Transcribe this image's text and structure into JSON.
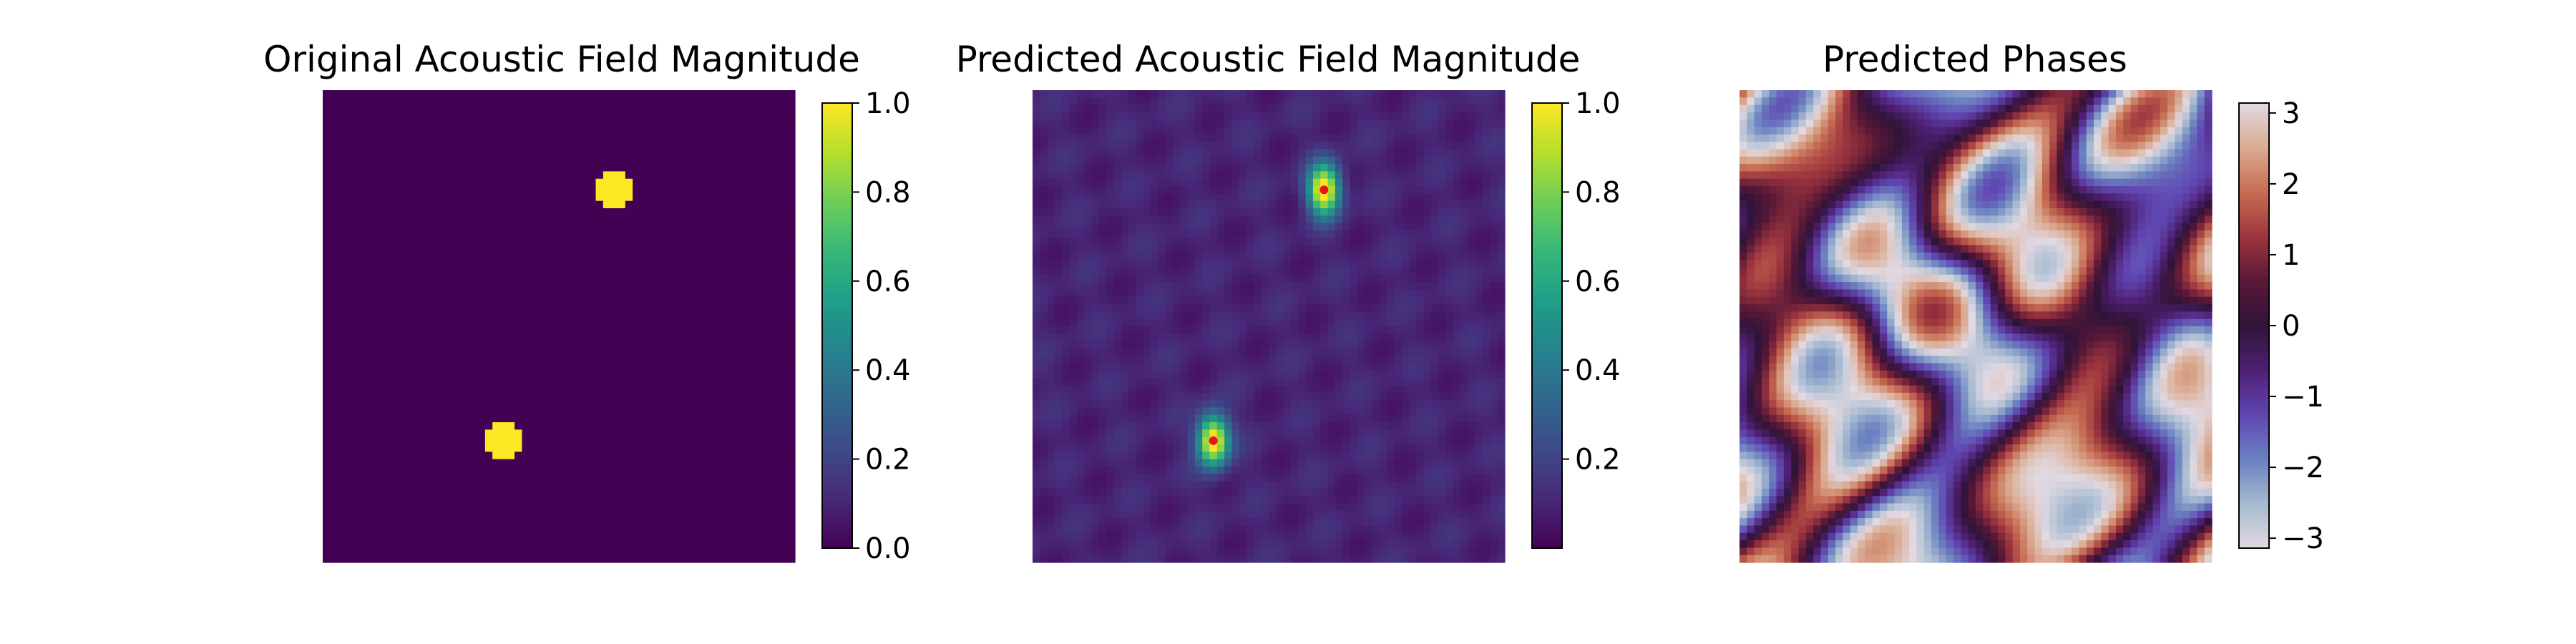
{
  "chart_data": [
    {
      "type": "heatmap",
      "title": "Original Acoustic Field Magnitude",
      "colormap": "viridis",
      "grid_size": 64,
      "clim": [
        0.0,
        1.0
      ],
      "colorbar_ticks": [
        "0.0",
        "0.2",
        "0.4",
        "0.6",
        "0.8",
        "1.0"
      ],
      "colorbar_tick_values": [
        0.0,
        0.2,
        0.4,
        0.6,
        0.8,
        1.0
      ],
      "background_value": 0.0,
      "focal_points": [
        {
          "col": 39,
          "row": 13,
          "value": 1.0
        },
        {
          "col": 24,
          "row": 47,
          "value": 1.0
        }
      ]
    },
    {
      "type": "heatmap",
      "title": "Predicted Acoustic Field Magnitude",
      "colormap": "viridis",
      "grid_size": 64,
      "clim": [
        0.0,
        1.0
      ],
      "colorbar_ticks": [
        "0.2",
        "0.4",
        "0.6",
        "0.8",
        "1.0"
      ],
      "colorbar_tick_values": [
        0.2,
        0.4,
        0.6,
        0.8,
        1.0
      ],
      "background_value": 0.05,
      "focal_points": [
        {
          "col": 39,
          "row": 13,
          "value": 1.0
        },
        {
          "col": 24,
          "row": 47,
          "value": 1.0
        }
      ],
      "marker_color": "#e8141c"
    },
    {
      "type": "heatmap",
      "title": "Predicted Phases",
      "colormap": "twilight",
      "grid_size": 64,
      "clim": [
        -3.14,
        3.14
      ],
      "colorbar_ticks": [
        "3",
        "2",
        "1",
        "0",
        "−1",
        "−2",
        "−3"
      ],
      "colorbar_tick_values": [
        3,
        2,
        1,
        0,
        -1,
        -2,
        -3
      ]
    }
  ]
}
